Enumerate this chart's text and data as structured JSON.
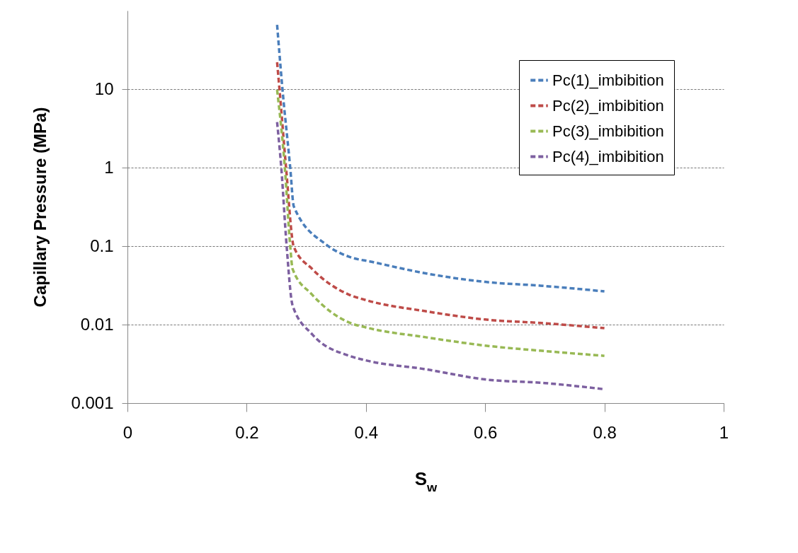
{
  "chart_data": {
    "type": "line",
    "xlabel": "S$_{w}$",
    "ylabel": "Capillary Pressure (MPa)",
    "xlim": [
      0,
      1
    ],
    "xticks": [
      0,
      0.2,
      0.4,
      0.6,
      0.8,
      1
    ],
    "ylim": [
      0.001,
      100
    ],
    "yticks": [
      0.001,
      0.01,
      0.1,
      1,
      10
    ],
    "log": "y",
    "grid": "y",
    "legend": "top right",
    "line_style": "dashed",
    "marker": "none",
    "series": [
      {
        "name": "Pc(1)_imbibition",
        "color": "#4a7ebb",
        "x": [
          0.251,
          0.26,
          0.273,
          0.279,
          0.333,
          0.372,
          0.41,
          0.5,
          0.6,
          0.7,
          0.8
        ],
        "values": [
          66,
          10,
          1,
          0.32,
          0.105,
          0.073,
          0.063,
          0.045,
          0.035,
          0.031,
          0.0265
        ]
      },
      {
        "name": "Pc(2)_imbibition",
        "color": "#be4b48",
        "x": [
          0.251,
          0.255,
          0.266,
          0.279,
          0.31,
          0.372,
          0.4,
          0.5,
          0.6,
          0.7,
          0.8
        ],
        "values": [
          22,
          10,
          1,
          0.098,
          0.051,
          0.024,
          0.0205,
          0.0148,
          0.0116,
          0.0104,
          0.009
        ]
      },
      {
        "name": "Pc(3)_imbibition",
        "color": "#98b954",
        "x": [
          0.251,
          0.264,
          0.273,
          0.277,
          0.31,
          0.372,
          0.4,
          0.5,
          0.6,
          0.7,
          0.8
        ],
        "values": [
          9.8,
          1,
          0.1,
          0.051,
          0.024,
          0.0106,
          0.0092,
          0.0069,
          0.0054,
          0.0046,
          0.004
        ]
      },
      {
        "name": "Pc(4)_imbibition",
        "color": "#7d60a0",
        "x": [
          0.251,
          0.258,
          0.267,
          0.277,
          0.31,
          0.372,
          0.4,
          0.5,
          0.6,
          0.7,
          0.8
        ],
        "values": [
          3.8,
          1,
          0.1,
          0.0175,
          0.0075,
          0.004,
          0.0035,
          0.0027,
          0.002,
          0.0018,
          0.0015
        ]
      }
    ]
  }
}
